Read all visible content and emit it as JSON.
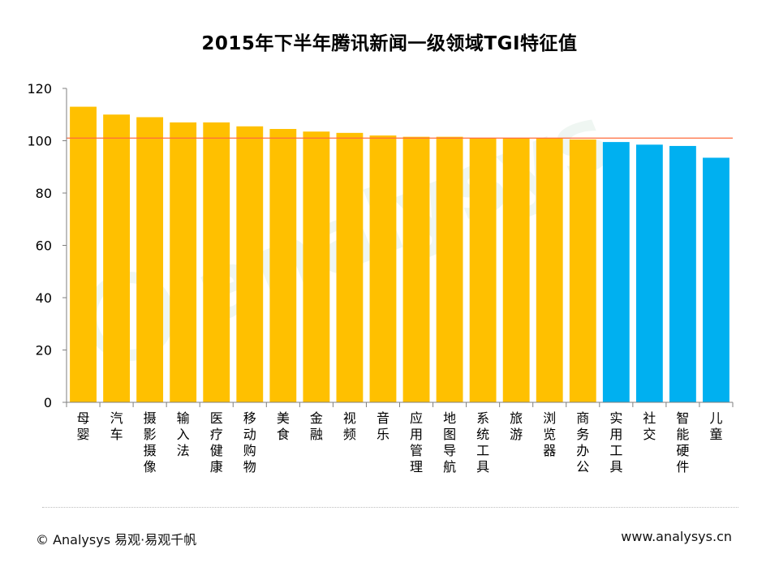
{
  "chart_data": {
    "type": "bar",
    "title": "2015年下半年腾讯新闻一级领域TGI特征值",
    "xlabel": "",
    "ylabel": "",
    "ylim": [
      0,
      120
    ],
    "yticks": [
      0,
      20,
      40,
      60,
      80,
      100,
      120
    ],
    "reference_line": 101,
    "categories": [
      "母婴",
      "汽车",
      "摄影摄像",
      "输入法",
      "医疗健康",
      "移动购物",
      "美食",
      "金融",
      "视频",
      "音乐",
      "应用管理",
      "地图导航",
      "系统工具",
      "旅游",
      "浏览器",
      "商务办公",
      "实用工具",
      "社交",
      "智能硬件",
      "儿童"
    ],
    "values": [
      113,
      110,
      109,
      107,
      107,
      105.5,
      104.5,
      103.5,
      103,
      102,
      101.5,
      101.5,
      101,
      101,
      101,
      100.5,
      99.5,
      98.5,
      98,
      93.5
    ],
    "colors": {
      "above": "#ffc000",
      "below": "#00b0f0",
      "reference_line": "#ff6b3d",
      "axis": "#7f7f7f"
    },
    "watermark": "analysys"
  },
  "footer": {
    "copyright": "© Analysys 易观·易观千帆",
    "website": "www.analysys.cn"
  }
}
